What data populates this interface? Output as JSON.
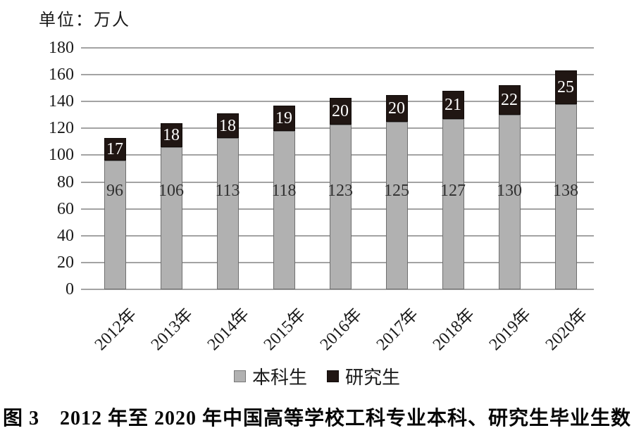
{
  "unit_label": "单位：万人",
  "caption": "图 3　2012 年至 2020 年中国高等学校工科专业本科、研究生毕业生数",
  "colors": {
    "undergrad_fill": "#b1b1b1",
    "undergrad_border": "#6f6f6f",
    "grad_fill": "#201613",
    "grad_border": "#120c0a",
    "grid": "#a3a3a3",
    "bar_label_dark": "#2f2f2f",
    "bar_label_light": "#ffffff"
  },
  "chart_data": {
    "type": "bar",
    "stacked": true,
    "title": "图 3 2012 年至 2020 年中国高等学校工科专业本科、研究生毕业生数",
    "unit": "万人",
    "categories": [
      "2012年",
      "2013年",
      "2014年",
      "2015年",
      "2016年",
      "2017年",
      "2018年",
      "2019年",
      "2020年"
    ],
    "series": [
      {
        "name": "本科生",
        "values": [
          96,
          106,
          113,
          118,
          123,
          125,
          127,
          130,
          138
        ]
      },
      {
        "name": "研究生",
        "values": [
          17,
          18,
          18,
          19,
          20,
          20,
          21,
          22,
          25
        ]
      }
    ],
    "ylim": [
      0,
      180
    ],
    "yticks": [
      0,
      20,
      40,
      60,
      80,
      100,
      120,
      140,
      160,
      180
    ],
    "grid": true,
    "legend_position": "bottom"
  }
}
